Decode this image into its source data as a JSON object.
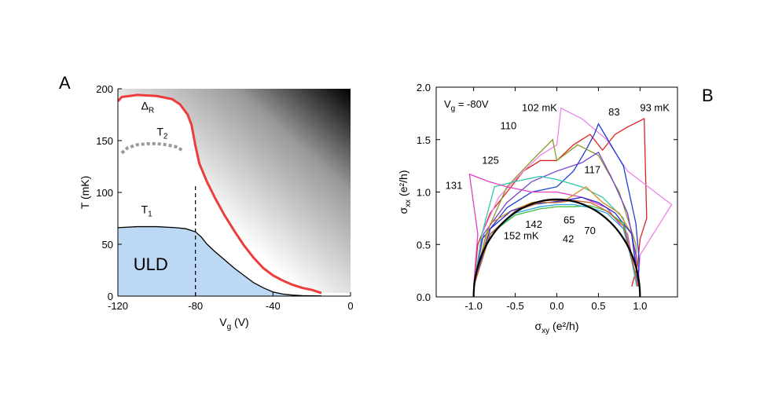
{
  "chart_data": [
    {
      "panel_label": "A",
      "type": "line",
      "xlabel": "V",
      "xlabel_sub": "g",
      "xlabel_unit": " (V)",
      "ylabel": "T (mK)",
      "xlim": [
        -120,
        0
      ],
      "ylim": [
        0,
        200
      ],
      "xticks": [
        -120,
        -80,
        -40,
        0
      ],
      "yticks": [
        0,
        50,
        100,
        150,
        200
      ],
      "background": "grayscale gradient, white lower-left to black upper-right",
      "series": [
        {
          "name": "Δ_R",
          "color": "#ee3b3b",
          "style": "solid",
          "x": [
            -120,
            -118,
            -110,
            -100,
            -92,
            -88,
            -84,
            -82,
            -80,
            -78,
            -74,
            -70,
            -65,
            -60,
            -55,
            -50,
            -45,
            -40,
            -35,
            -30,
            -25,
            -20,
            -15
          ],
          "y": [
            188,
            192,
            194,
            193,
            190,
            185,
            175,
            165,
            145,
            128,
            110,
            95,
            78,
            63,
            49,
            37,
            27,
            20,
            15,
            11,
            8,
            6,
            3
          ]
        },
        {
          "name": "T_2",
          "color": "#999999",
          "style": "dashed",
          "x": [
            -118,
            -115,
            -110,
            -105,
            -100,
            -95,
            -90,
            -86
          ],
          "y": [
            138,
            143,
            146,
            147,
            147,
            146,
            144,
            140
          ]
        },
        {
          "name": "T_1",
          "color": "#000000",
          "style": "solid",
          "x": [
            -120,
            -110,
            -100,
            -90,
            -85,
            -80,
            -77,
            -74,
            -70,
            -65,
            -60,
            -55,
            -50,
            -45,
            -40,
            -35,
            -30,
            -25,
            -20,
            -15
          ],
          "y": [
            66,
            67,
            67,
            66,
            65,
            62,
            57,
            50,
            43,
            35,
            27,
            20,
            13,
            8,
            4,
            2,
            1,
            0.5,
            0.3,
            0.2
          ]
        }
      ],
      "region": {
        "name": "ULD",
        "color": "#bcd8f4"
      },
      "vline": {
        "x": -80,
        "style": "dashed"
      },
      "labels": {
        "delta": "Δ",
        "delta_sub": "R",
        "t2": "T",
        "t2_sub": "2",
        "t1": "T",
        "t1_sub": "1",
        "uld": "ULD"
      }
    },
    {
      "panel_label": "B",
      "type": "line",
      "xlabel": "σ",
      "xlabel_sub": "xy",
      "xlabel_unit": " (e²/h)",
      "ylabel": "σ",
      "ylabel_sub": "xx",
      "ylabel_unit": " (e²/h)",
      "xlim": [
        -1.45,
        1.45
      ],
      "ylim": [
        0,
        2.0
      ],
      "xticks": [
        -1.0,
        -0.5,
        0.0,
        0.5,
        1.0
      ],
      "xtick_labels": [
        "-1.0",
        "-0.5",
        "0.0",
        "0.5",
        "1.0"
      ],
      "yticks": [
        0,
        0.5,
        1.0,
        1.5,
        2.0
      ],
      "ytick_labels": [
        "0.0",
        "0.5",
        "1.0",
        "1.5",
        "2.0"
      ],
      "inset_text": "V",
      "inset_sub": "g",
      "inset_value": " = -80V",
      "semicircle": {
        "center": 0,
        "radius": 1.0,
        "peak": 0.93,
        "color": "#000000"
      },
      "series": [
        {
          "label": "93 mK",
          "color": "#e02020",
          "x": [
            -1.0,
            -0.95,
            -0.8,
            -0.6,
            -0.4,
            -0.2,
            0.0,
            0.2,
            0.4,
            0.55,
            0.7,
            0.85,
            1.05,
            1.08,
            1.0,
            0.97,
            0.9
          ],
          "y": [
            0.1,
            0.5,
            0.8,
            1.0,
            1.2,
            1.3,
            1.3,
            1.45,
            1.55,
            1.4,
            1.55,
            1.62,
            1.7,
            0.75,
            0.55,
            0.3,
            0.1
          ]
        },
        {
          "label": "102 mK",
          "color": "#ee82ee",
          "x": [
            -1.0,
            -0.9,
            -0.7,
            -0.4,
            -0.2,
            0.0,
            0.05,
            0.3,
            0.6,
            0.85,
            1.38,
            1.0,
            0.98
          ],
          "y": [
            0.1,
            0.6,
            0.95,
            1.2,
            1.35,
            1.45,
            1.8,
            1.7,
            1.5,
            1.2,
            0.88,
            0.4,
            0.1
          ]
        },
        {
          "label": "83",
          "color": "#1f3fd6",
          "x": [
            -1.0,
            -0.9,
            -0.6,
            -0.3,
            0.0,
            0.2,
            0.35,
            0.45,
            0.5,
            0.8,
            0.95,
            0.99,
            0.97
          ],
          "y": [
            0.1,
            0.55,
            0.85,
            1.0,
            1.05,
            1.2,
            1.4,
            1.55,
            1.65,
            1.25,
            0.7,
            0.35,
            0.1
          ]
        },
        {
          "label": "110",
          "color": "#8a9a2a",
          "x": [
            -1.0,
            -0.85,
            -0.6,
            -0.3,
            -0.05,
            0.0,
            0.25,
            0.5,
            0.75,
            0.95,
            0.97
          ],
          "y": [
            0.1,
            0.6,
            1.05,
            1.3,
            1.5,
            1.3,
            1.45,
            1.35,
            1.0,
            0.5,
            0.1
          ]
        },
        {
          "label": "117",
          "color": "#7a3fc9",
          "x": [
            -1.0,
            -0.88,
            -0.6,
            -0.3,
            0.0,
            0.3,
            0.5,
            0.65,
            0.85,
            0.95,
            0.97
          ],
          "y": [
            0.1,
            0.6,
            0.9,
            1.1,
            1.2,
            1.28,
            1.38,
            1.15,
            0.8,
            0.4,
            0.1
          ]
        },
        {
          "label": "125",
          "color": "#30c8a8",
          "x": [
            -1.0,
            -0.9,
            -0.75,
            -0.5,
            -0.2,
            0.0,
            0.3,
            0.55,
            0.8,
            0.96
          ],
          "y": [
            0.1,
            0.6,
            1.05,
            1.1,
            1.15,
            1.12,
            1.05,
            0.95,
            0.75,
            0.1
          ]
        },
        {
          "label": "131",
          "color": "#e040c0",
          "x": [
            -1.0,
            -0.95,
            -1.05,
            -0.82,
            -0.6,
            -0.3,
            0.0,
            0.3,
            0.6,
            0.85,
            0.97
          ],
          "y": [
            0.1,
            0.6,
            1.17,
            1.1,
            1.05,
            1.0,
            1.0,
            0.95,
            0.85,
            0.6,
            0.1
          ]
        },
        {
          "label": "142",
          "color": "#d98a20",
          "x": [
            -1.0,
            -0.8,
            -0.55,
            -0.3,
            -0.1,
            0.1,
            0.35,
            0.55,
            0.75,
            0.9,
            0.98
          ],
          "y": [
            0.1,
            0.7,
            0.82,
            0.9,
            0.92,
            0.92,
            1.05,
            0.9,
            0.8,
            0.6,
            0.1
          ]
        },
        {
          "label": "152 mK",
          "color": "#2a2ad0",
          "x": [
            -1.0,
            -0.8,
            -0.55,
            -0.3,
            -0.1,
            0.1,
            0.3,
            0.5,
            0.7,
            0.9,
            0.98
          ],
          "y": [
            0.1,
            0.65,
            0.82,
            0.88,
            0.9,
            0.92,
            0.95,
            0.9,
            0.8,
            0.6,
            0.1
          ]
        },
        {
          "label": "65",
          "color": "#40c040",
          "x": [
            -1.0,
            -0.8,
            -0.5,
            -0.2,
            0.0,
            0.2,
            0.4,
            0.6,
            0.8,
            0.98
          ],
          "y": [
            0.1,
            0.6,
            0.78,
            0.84,
            0.86,
            0.86,
            0.87,
            0.82,
            0.7,
            0.1
          ]
        },
        {
          "label": "42",
          "color": "#2fa8e0",
          "x": [
            -1.0,
            -0.8,
            -0.5,
            -0.2,
            0.0,
            0.2,
            0.4,
            0.6,
            0.8,
            0.98
          ],
          "y": [
            0.1,
            0.6,
            0.8,
            0.86,
            0.88,
            0.88,
            0.85,
            0.8,
            0.65,
            0.1
          ]
        },
        {
          "label": "70",
          "color": "#c06030",
          "x": [
            -1.0,
            -0.8,
            -0.5,
            -0.2,
            0.0,
            0.2,
            0.4,
            0.6,
            0.8,
            0.98
          ],
          "y": [
            0.1,
            0.6,
            0.82,
            0.9,
            0.9,
            0.92,
            0.9,
            0.82,
            0.68,
            0.1
          ]
        }
      ],
      "annotations": [
        "102 mK",
        "83",
        "93 mK",
        "110",
        "125",
        "117",
        "131",
        "142",
        "65",
        "70",
        "152 mK",
        "42"
      ]
    }
  ]
}
